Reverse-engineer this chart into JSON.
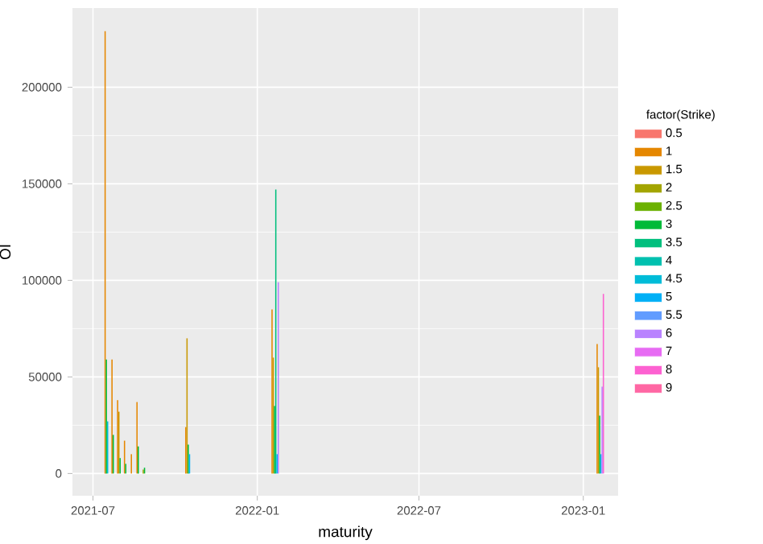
{
  "chart_data": {
    "type": "bar",
    "xlabel": "maturity",
    "ylabel": "OI",
    "legend_title": "factor(Strike)",
    "x": [
      "2021-07-16",
      "2021-07-23",
      "2021-07-30",
      "2021-08-06",
      "2021-08-13",
      "2021-08-20",
      "2021-08-27",
      "2021-10-15",
      "2022-01-21",
      "2023-01-20"
    ],
    "series": [
      {
        "name": "0.5",
        "color": "#F8766D",
        "values": [
          null,
          null,
          null,
          null,
          null,
          null,
          null,
          null,
          null,
          null
        ]
      },
      {
        "name": "1",
        "color": "#E58700",
        "values": [
          229000,
          59000,
          38000,
          17000,
          10000,
          37000,
          null,
          24000,
          85000,
          67000
        ]
      },
      {
        "name": "1.5",
        "color": "#C99800",
        "values": [
          null,
          null,
          32000,
          null,
          null,
          null,
          null,
          70000,
          60000,
          55000
        ]
      },
      {
        "name": "2",
        "color": "#A3A500",
        "values": [
          null,
          null,
          null,
          null,
          null,
          null,
          2000,
          null,
          null,
          null
        ]
      },
      {
        "name": "2.5",
        "color": "#6BB100",
        "values": [
          null,
          null,
          null,
          null,
          null,
          null,
          null,
          null,
          null,
          null
        ]
      },
      {
        "name": "3",
        "color": "#00BA38",
        "values": [
          59000,
          20000,
          8000,
          5000,
          null,
          14000,
          3000,
          15000,
          35000,
          30000
        ]
      },
      {
        "name": "3.5",
        "color": "#00BF7D",
        "values": [
          null,
          null,
          null,
          null,
          null,
          null,
          null,
          null,
          147000,
          null
        ]
      },
      {
        "name": "4",
        "color": "#00C0AF",
        "values": [
          null,
          null,
          null,
          null,
          null,
          null,
          null,
          null,
          null,
          null
        ]
      },
      {
        "name": "4.5",
        "color": "#00BCD8",
        "values": [
          27000,
          null,
          null,
          null,
          null,
          null,
          null,
          null,
          null,
          null
        ]
      },
      {
        "name": "5",
        "color": "#00B0F6",
        "values": [
          null,
          null,
          null,
          null,
          null,
          null,
          null,
          10000,
          10000,
          10000
        ]
      },
      {
        "name": "5.5",
        "color": "#619CFF",
        "values": [
          null,
          null,
          null,
          null,
          null,
          null,
          null,
          null,
          null,
          null
        ]
      },
      {
        "name": "6",
        "color": "#B983FF",
        "values": [
          null,
          null,
          null,
          null,
          null,
          null,
          null,
          null,
          99000,
          45000
        ]
      },
      {
        "name": "7",
        "color": "#E76BF3",
        "values": [
          null,
          null,
          null,
          null,
          null,
          null,
          null,
          null,
          null,
          null
        ]
      },
      {
        "name": "8",
        "color": "#FD61D1",
        "values": [
          null,
          null,
          null,
          null,
          null,
          null,
          null,
          null,
          null,
          93000
        ]
      },
      {
        "name": "9",
        "color": "#FF67A4",
        "values": [
          null,
          null,
          null,
          null,
          null,
          null,
          null,
          null,
          null,
          null
        ]
      }
    ],
    "xlim": [
      "2021-06-08",
      "2023-02-09"
    ],
    "ylim": [
      -11500,
      241000
    ],
    "xticks": [
      "2021-07",
      "2022-01",
      "2022-07",
      "2023-01"
    ],
    "yticks": [
      0,
      50000,
      100000,
      150000,
      200000
    ],
    "grid": true,
    "legend": "right"
  }
}
